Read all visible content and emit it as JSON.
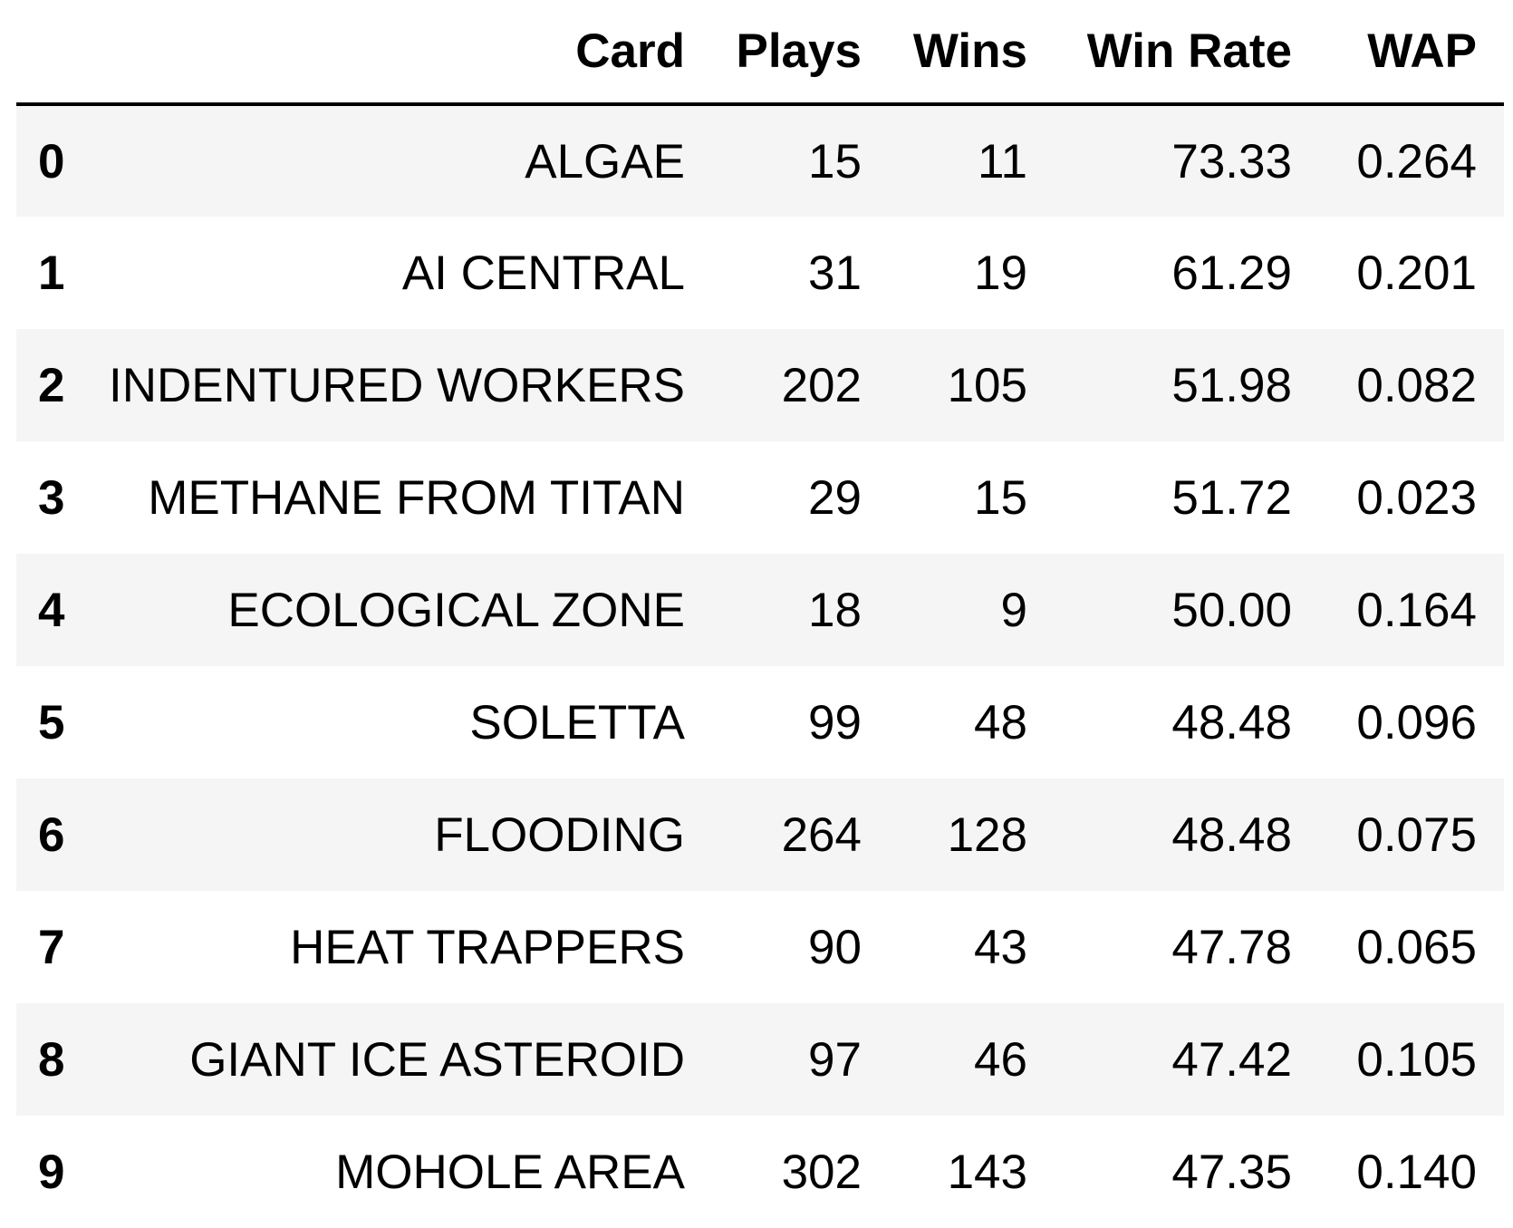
{
  "table": {
    "columns": [
      "Card",
      "Plays",
      "Wins",
      "Win Rate",
      "WAP"
    ],
    "rows": [
      {
        "index": "0",
        "card": "ALGAE",
        "plays": "15",
        "wins": "11",
        "win_rate": "73.33",
        "wap": "0.264"
      },
      {
        "index": "1",
        "card": "AI CENTRAL",
        "plays": "31",
        "wins": "19",
        "win_rate": "61.29",
        "wap": "0.201"
      },
      {
        "index": "2",
        "card": "INDENTURED WORKERS",
        "plays": "202",
        "wins": "105",
        "win_rate": "51.98",
        "wap": "0.082"
      },
      {
        "index": "3",
        "card": "METHANE FROM TITAN",
        "plays": "29",
        "wins": "15",
        "win_rate": "51.72",
        "wap": "0.023"
      },
      {
        "index": "4",
        "card": "ECOLOGICAL ZONE",
        "plays": "18",
        "wins": "9",
        "win_rate": "50.00",
        "wap": "0.164"
      },
      {
        "index": "5",
        "card": "SOLETTA",
        "plays": "99",
        "wins": "48",
        "win_rate": "48.48",
        "wap": "0.096"
      },
      {
        "index": "6",
        "card": "FLOODING",
        "plays": "264",
        "wins": "128",
        "win_rate": "48.48",
        "wap": "0.075"
      },
      {
        "index": "7",
        "card": "HEAT TRAPPERS",
        "plays": "90",
        "wins": "43",
        "win_rate": "47.78",
        "wap": "0.065"
      },
      {
        "index": "8",
        "card": "GIANT ICE ASTEROID",
        "plays": "97",
        "wins": "46",
        "win_rate": "47.42",
        "wap": "0.105"
      },
      {
        "index": "9",
        "card": "MOHOLE AREA",
        "plays": "302",
        "wins": "143",
        "win_rate": "47.35",
        "wap": "0.140"
      }
    ]
  },
  "colors": {
    "striped_row": "#f5f5f5",
    "background": "#ffffff",
    "text": "#000000",
    "header_rule": "#000000"
  }
}
